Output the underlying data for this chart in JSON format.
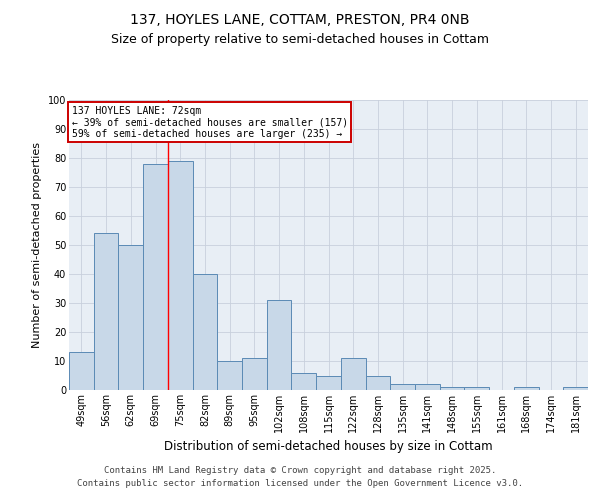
{
  "title": "137, HOYLES LANE, COTTAM, PRESTON, PR4 0NB",
  "subtitle": "Size of property relative to semi-detached houses in Cottam",
  "xlabel": "Distribution of semi-detached houses by size in Cottam",
  "ylabel": "Number of semi-detached properties",
  "categories": [
    "49sqm",
    "56sqm",
    "62sqm",
    "69sqm",
    "75sqm",
    "82sqm",
    "89sqm",
    "95sqm",
    "102sqm",
    "108sqm",
    "115sqm",
    "122sqm",
    "128sqm",
    "135sqm",
    "141sqm",
    "148sqm",
    "155sqm",
    "161sqm",
    "168sqm",
    "174sqm",
    "181sqm"
  ],
  "values": [
    13,
    54,
    50,
    78,
    79,
    40,
    10,
    11,
    31,
    6,
    5,
    11,
    5,
    2,
    2,
    1,
    1,
    0,
    1,
    0,
    1
  ],
  "bar_color": "#c8d8e8",
  "bar_edge_color": "#5b8ab5",
  "reference_line_x": 3.5,
  "reference_line_label": "137 HOYLES LANE: 72sqm",
  "annotation_smaller": "← 39% of semi-detached houses are smaller (157)",
  "annotation_larger": "59% of semi-detached houses are larger (235) →",
  "annotation_box_color": "#ffffff",
  "annotation_box_edge_color": "#cc0000",
  "ylim": [
    0,
    100
  ],
  "yticks": [
    0,
    10,
    20,
    30,
    40,
    50,
    60,
    70,
    80,
    90,
    100
  ],
  "grid_color": "#c8d0dc",
  "background_color": "#e8eef5",
  "footer_line1": "Contains HM Land Registry data © Crown copyright and database right 2025.",
  "footer_line2": "Contains public sector information licensed under the Open Government Licence v3.0.",
  "title_fontsize": 10,
  "subtitle_fontsize": 9,
  "axis_label_fontsize": 8,
  "tick_fontsize": 7,
  "footer_fontsize": 6.5,
  "annot_fontsize": 7
}
